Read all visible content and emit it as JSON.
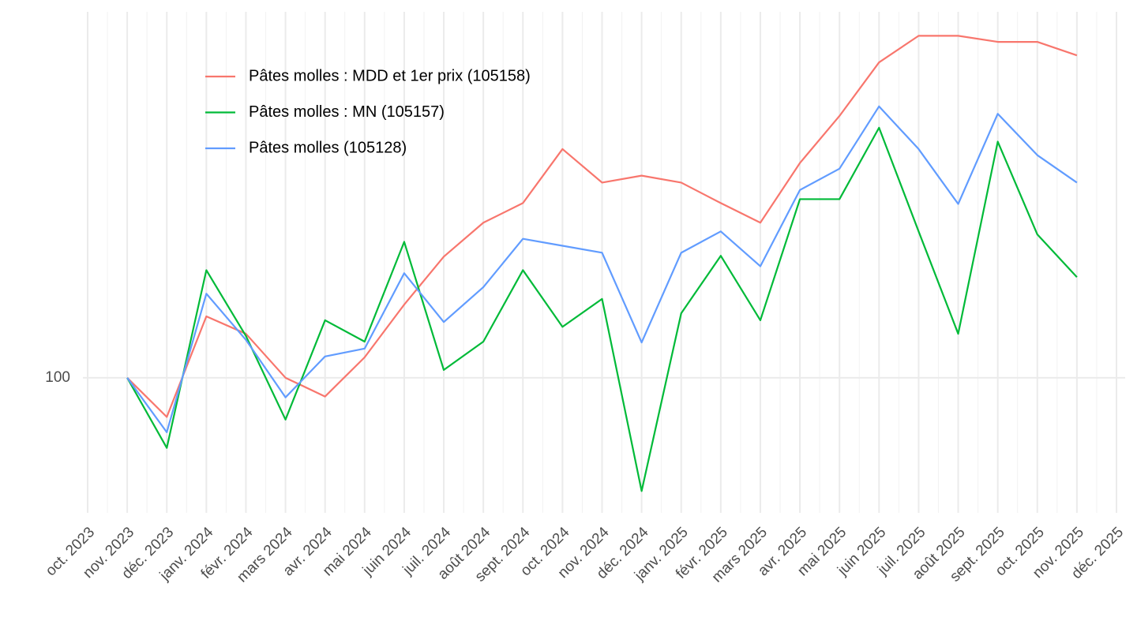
{
  "chart_data": {
    "type": "line",
    "categories": [
      "oct. 2023",
      "nov. 2023",
      "déc. 2023",
      "janv. 2024",
      "févr. 2024",
      "mars 2024",
      "avr. 2024",
      "mai 2024",
      "juin 2024",
      "juil. 2024",
      "août 2024",
      "sept. 2024",
      "oct. 2024",
      "nov. 2024",
      "déc. 2024",
      "janv. 2025",
      "févr. 2025",
      "mars 2025",
      "avr. 2025",
      "mai 2025",
      "juin 2025",
      "juil. 2025",
      "août 2025",
      "sept. 2025",
      "oct. 2025",
      "nov. 2025",
      "déc. 2025"
    ],
    "series": [
      {
        "name": "Pâtes molles : MDD et 1er prix (105158)",
        "color": "#f8766d",
        "values": [
          null,
          100,
          99.1,
          101.41,
          101.01,
          100,
          99.57,
          100.47,
          101.68,
          102.78,
          103.56,
          104.01,
          105.25,
          104.48,
          104.64,
          104.48,
          104.01,
          103.56,
          104.93,
          106.01,
          107.24,
          107.85,
          107.85,
          107.71,
          107.71,
          107.4,
          null
        ]
      },
      {
        "name": "Pâtes molles : MN (105157)",
        "color": "#00ba38",
        "values": [
          null,
          100,
          98.39,
          102.47,
          100.96,
          99.04,
          101.32,
          100.83,
          103.12,
          100.18,
          100.83,
          102.47,
          101.17,
          101.81,
          97.4,
          101.48,
          102.8,
          101.32,
          104.1,
          104.1,
          105.74,
          103.36,
          101.01,
          105.42,
          103.29,
          102.31,
          null
        ]
      },
      {
        "name": "Pâtes molles (105128)",
        "color": "#619cff",
        "values": [
          null,
          100,
          98.75,
          101.93,
          100.87,
          99.55,
          100.49,
          100.67,
          102.4,
          101.28,
          102.08,
          103.19,
          103.03,
          102.87,
          100.81,
          102.87,
          103.36,
          102.56,
          104.31,
          104.8,
          106.23,
          105.25,
          103.99,
          106.06,
          105.11,
          104.48,
          null
        ]
      }
    ],
    "ylim": [
      96.9,
      108.4
    ],
    "yticks": [
      100
    ],
    "grid": true,
    "legend": "top-left"
  }
}
